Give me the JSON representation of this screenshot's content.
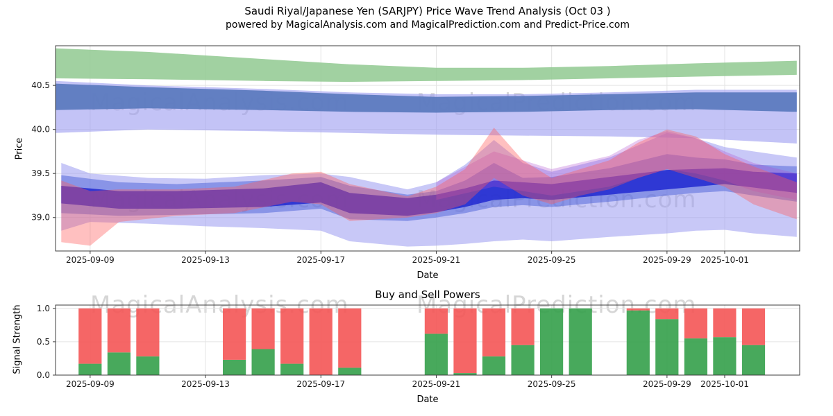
{
  "figure": {
    "title_line1": "Saudi Riyal/Japanese Yen (SARJPY) Price Wave Trend Analysis (Oct 03 )",
    "title_line2": "powered by MagicalAnalysis.com and MagicalPrediction.com and Predict-Price.com",
    "watermark_analysis": "MagicalAnalysis.com",
    "watermark_prediction": "MagicalPrediction.com"
  },
  "chart_data": [
    {
      "type": "area",
      "name": "price-wave-trend",
      "ylabel": "Price",
      "xlabel": "Date",
      "ylim": [
        38.62,
        40.95
      ],
      "ytick_values": [
        39.0,
        39.5,
        40.0,
        40.5
      ],
      "yticklabels": [
        "39.0",
        "39.5",
        "40.0",
        "40.5"
      ],
      "xlim_days": [
        0.8,
        26.6
      ],
      "xtick_days": [
        2,
        6,
        10,
        14,
        18,
        22,
        24
      ],
      "xticklabels": [
        "2025-09-09",
        "2025-09-13",
        "2025-09-17",
        "2025-09-21",
        "2025-09-25",
        "2025-09-29",
        "2025-10-01"
      ],
      "grid": true,
      "bands": [
        {
          "name": "upper-lavender",
          "color": "#9b9bf0",
          "opacity": 0.6,
          "points": [
            [
              0.8,
              39.96,
              40.55
            ],
            [
              4,
              40.0,
              40.5
            ],
            [
              8,
              39.98,
              40.46
            ],
            [
              11,
              39.96,
              40.42
            ],
            [
              14,
              39.94,
              40.4
            ],
            [
              17,
              39.93,
              40.4
            ],
            [
              20,
              39.92,
              40.42
            ],
            [
              23,
              39.9,
              40.45
            ],
            [
              26.5,
              39.84,
              40.45
            ]
          ]
        },
        {
          "name": "upper-slate",
          "color": "#5878bc",
          "opacity": 0.9,
          "points": [
            [
              0.8,
              40.22,
              40.52
            ],
            [
              4,
              40.24,
              40.48
            ],
            [
              8,
              40.22,
              40.44
            ],
            [
              11,
              40.2,
              40.4
            ],
            [
              14,
              40.19,
              40.37
            ],
            [
              17,
              40.2,
              40.38
            ],
            [
              20,
              40.22,
              40.4
            ],
            [
              23,
              40.23,
              40.42
            ],
            [
              26.5,
              40.2,
              40.42
            ]
          ]
        },
        {
          "name": "upper-green",
          "color": "#90c990",
          "opacity": 0.85,
          "points": [
            [
              0.8,
              40.58,
              40.92
            ],
            [
              4,
              40.57,
              40.88
            ],
            [
              8,
              40.55,
              40.8
            ],
            [
              11,
              40.54,
              40.74
            ],
            [
              14,
              40.55,
              40.7
            ],
            [
              17,
              40.56,
              40.7
            ],
            [
              20,
              40.58,
              40.72
            ],
            [
              23,
              40.6,
              40.75
            ],
            [
              26.5,
              40.62,
              40.78
            ]
          ]
        },
        {
          "name": "lower-wide-lavender",
          "color": "#9b9bf0",
          "opacity": 0.55,
          "points": [
            [
              1,
              38.85,
              39.62
            ],
            [
              2,
              38.95,
              39.5
            ],
            [
              4,
              38.93,
              39.45
            ],
            [
              6,
              38.9,
              39.44
            ],
            [
              8,
              38.88,
              39.48
            ],
            [
              10,
              38.85,
              39.5
            ],
            [
              11,
              38.73,
              39.46
            ],
            [
              13,
              38.67,
              39.32
            ],
            [
              14,
              38.68,
              39.4
            ],
            [
              15,
              38.7,
              39.6
            ],
            [
              16,
              38.73,
              39.88
            ],
            [
              17,
              38.75,
              39.62
            ],
            [
              18,
              38.73,
              39.52
            ],
            [
              20,
              38.78,
              39.68
            ],
            [
              22,
              38.82,
              39.96
            ],
            [
              23,
              38.85,
              39.9
            ],
            [
              24,
              38.86,
              39.8
            ],
            [
              25,
              38.82,
              39.75
            ],
            [
              26.5,
              38.78,
              39.68
            ]
          ]
        },
        {
          "name": "lower-mid-blue",
          "color": "#4a5fd8",
          "opacity": 0.5,
          "points": [
            [
              1,
              39.05,
              39.48
            ],
            [
              3,
              39.02,
              39.4
            ],
            [
              5,
              39.03,
              39.38
            ],
            [
              8,
              39.05,
              39.42
            ],
            [
              10,
              39.1,
              39.46
            ],
            [
              11,
              38.98,
              39.36
            ],
            [
              13,
              38.96,
              39.26
            ],
            [
              14,
              39.0,
              39.3
            ],
            [
              15,
              39.05,
              39.42
            ],
            [
              16,
              39.12,
              39.62
            ],
            [
              17,
              39.14,
              39.45
            ],
            [
              18,
              39.12,
              39.46
            ],
            [
              20,
              39.18,
              39.56
            ],
            [
              22,
              39.25,
              39.72
            ],
            [
              23,
              39.28,
              39.68
            ],
            [
              24,
              39.3,
              39.66
            ],
            [
              25,
              39.25,
              39.6
            ],
            [
              26.5,
              39.18,
              39.58
            ]
          ]
        },
        {
          "name": "core-dark-blue",
          "color": "#2028d0",
          "opacity": 0.85,
          "points": [
            [
              1,
              39.16,
              39.36
            ],
            [
              3,
              39.1,
              39.3
            ],
            [
              5,
              39.1,
              39.3
            ],
            [
              8,
              39.12,
              39.33
            ],
            [
              10,
              39.17,
              39.4
            ],
            [
              11,
              39.05,
              39.28
            ],
            [
              13,
              39.02,
              39.22
            ],
            [
              14,
              39.06,
              39.26
            ],
            [
              15,
              39.12,
              39.33
            ],
            [
              16,
              39.2,
              39.42
            ],
            [
              17,
              39.22,
              39.4
            ],
            [
              18,
              39.2,
              39.38
            ],
            [
              20,
              39.26,
              39.46
            ],
            [
              22,
              39.32,
              39.54
            ],
            [
              24,
              39.38,
              39.56
            ],
            [
              25,
              39.34,
              39.52
            ],
            [
              26.5,
              39.28,
              39.5
            ]
          ]
        },
        {
          "name": "magenta-wave",
          "color": "#b050d0",
          "opacity": 0.3,
          "points": [
            [
              14,
              39.2,
              39.4
            ],
            [
              16,
              39.35,
              39.75
            ],
            [
              18,
              39.25,
              39.55
            ],
            [
              20,
              39.35,
              39.7
            ],
            [
              21,
              39.45,
              39.88
            ],
            [
              22,
              39.55,
              39.98
            ],
            [
              23,
              39.5,
              39.9
            ],
            [
              24,
              39.42,
              39.75
            ],
            [
              25,
              39.3,
              39.62
            ],
            [
              26.5,
              39.2,
              39.5
            ]
          ]
        },
        {
          "name": "red-wave",
          "color": "#ff5a5a",
          "opacity": 0.38,
          "points": [
            [
              1,
              38.72,
              39.42
            ],
            [
              2,
              38.68,
              39.3
            ],
            [
              3,
              38.95,
              39.32
            ],
            [
              5,
              39.02,
              39.32
            ],
            [
              7,
              39.05,
              39.35
            ],
            [
              9,
              39.18,
              39.5
            ],
            [
              10,
              39.15,
              39.52
            ],
            [
              11,
              38.96,
              39.38
            ],
            [
              13,
              39.0,
              39.24
            ],
            [
              14,
              39.05,
              39.35
            ],
            [
              15,
              39.15,
              39.55
            ],
            [
              16,
              39.45,
              40.02
            ],
            [
              17,
              39.25,
              39.65
            ],
            [
              18,
              39.15,
              39.45
            ],
            [
              19,
              39.25,
              39.55
            ],
            [
              20,
              39.32,
              39.65
            ],
            [
              21,
              39.45,
              39.85
            ],
            [
              22,
              39.55,
              40.0
            ],
            [
              23,
              39.45,
              39.92
            ],
            [
              24,
              39.35,
              39.72
            ],
            [
              25,
              39.15,
              39.58
            ],
            [
              26.5,
              38.98,
              39.4
            ]
          ]
        }
      ]
    },
    {
      "type": "bar",
      "name": "buy-sell-powers",
      "title": "Buy and Sell Powers",
      "ylabel": "Signal Strength",
      "xlabel": "Date",
      "ylim": [
        0,
        1.05
      ],
      "ytick_values": [
        0.0,
        0.5,
        1.0
      ],
      "yticklabels": [
        "0.0",
        "0.5",
        "1.0"
      ],
      "xlim_days": [
        0.8,
        26.6
      ],
      "xtick_days": [
        2,
        6,
        10,
        14,
        18,
        22,
        24
      ],
      "xticklabels": [
        "2025-09-09",
        "2025-09-13",
        "2025-09-17",
        "2025-09-21",
        "2025-09-25",
        "2025-09-29",
        "2025-10-01"
      ],
      "grid": true,
      "series": [
        {
          "name": "buy",
          "color": "#34a04a"
        },
        {
          "name": "sell",
          "color": "#f45555"
        }
      ],
      "bars": [
        {
          "date": "2025-09-09",
          "day": 2,
          "buy": 0.17,
          "sell": 0.83
        },
        {
          "date": "2025-09-10",
          "day": 3,
          "buy": 0.34,
          "sell": 0.66
        },
        {
          "date": "2025-09-11",
          "day": 4,
          "buy": 0.28,
          "sell": 0.72
        },
        {
          "date": "2025-09-14",
          "day": 7,
          "buy": 0.23,
          "sell": 0.77
        },
        {
          "date": "2025-09-15",
          "day": 8,
          "buy": 0.39,
          "sell": 0.61
        },
        {
          "date": "2025-09-16",
          "day": 9,
          "buy": 0.17,
          "sell": 0.83
        },
        {
          "date": "2025-09-17",
          "day": 10,
          "buy": 0.0,
          "sell": 1.0
        },
        {
          "date": "2025-09-18",
          "day": 11,
          "buy": 0.11,
          "sell": 0.89
        },
        {
          "date": "2025-09-21",
          "day": 14,
          "buy": 0.62,
          "sell": 0.38
        },
        {
          "date": "2025-09-22",
          "day": 15,
          "buy": 0.03,
          "sell": 0.97
        },
        {
          "date": "2025-09-23",
          "day": 16,
          "buy": 0.28,
          "sell": 0.72
        },
        {
          "date": "2025-09-24",
          "day": 17,
          "buy": 0.45,
          "sell": 0.55
        },
        {
          "date": "2025-09-25",
          "day": 18,
          "buy": 1.0,
          "sell": 0.0
        },
        {
          "date": "2025-09-26",
          "day": 19,
          "buy": 1.0,
          "sell": 0.0
        },
        {
          "date": "2025-09-28",
          "day": 21,
          "buy": 0.97,
          "sell": 0.03
        },
        {
          "date": "2025-09-29",
          "day": 22,
          "buy": 0.84,
          "sell": 0.16
        },
        {
          "date": "2025-09-30",
          "day": 23,
          "buy": 0.55,
          "sell": 0.45
        },
        {
          "date": "2025-10-01",
          "day": 24,
          "buy": 0.57,
          "sell": 0.43
        },
        {
          "date": "2025-10-02",
          "day": 25,
          "buy": 0.45,
          "sell": 0.55
        }
      ]
    }
  ]
}
